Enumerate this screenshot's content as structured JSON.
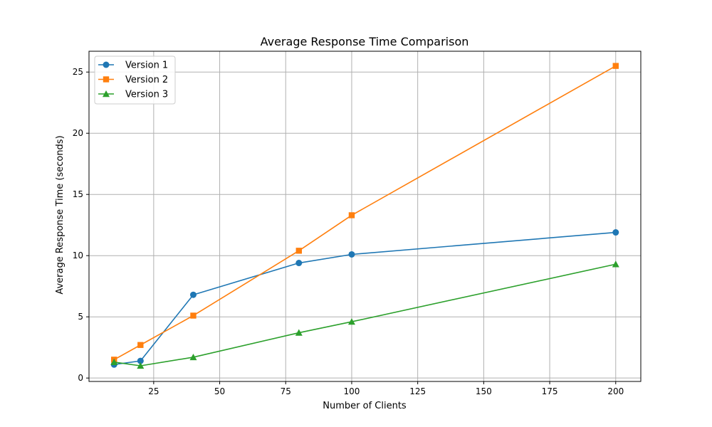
{
  "chart_data": {
    "type": "line",
    "title": "Average Response Time Comparison",
    "xlabel": "Number of Clients",
    "ylabel": "Average Response Time (seconds)",
    "xlim": [
      0.5,
      209.5
    ],
    "ylim": [
      -0.28,
      26.7
    ],
    "xticks": [
      25,
      50,
      75,
      100,
      125,
      150,
      175,
      200
    ],
    "yticks": [
      0,
      5,
      10,
      15,
      20,
      25
    ],
    "grid": true,
    "legend": {
      "position": "top-left"
    },
    "x": [
      10,
      20,
      40,
      80,
      100,
      200
    ],
    "series": [
      {
        "name": "Version 1",
        "color": "#1f77b4",
        "marker": "circle",
        "values": [
          1.1,
          1.4,
          6.8,
          9.4,
          10.1,
          11.9
        ]
      },
      {
        "name": "Version 2",
        "color": "#ff7f0e",
        "marker": "square",
        "values": [
          1.5,
          2.7,
          5.1,
          10.4,
          13.3,
          25.5
        ]
      },
      {
        "name": "Version 3",
        "color": "#2ca02c",
        "marker": "triangle",
        "values": [
          1.3,
          1.0,
          1.7,
          3.7,
          4.6,
          9.3
        ]
      }
    ]
  }
}
